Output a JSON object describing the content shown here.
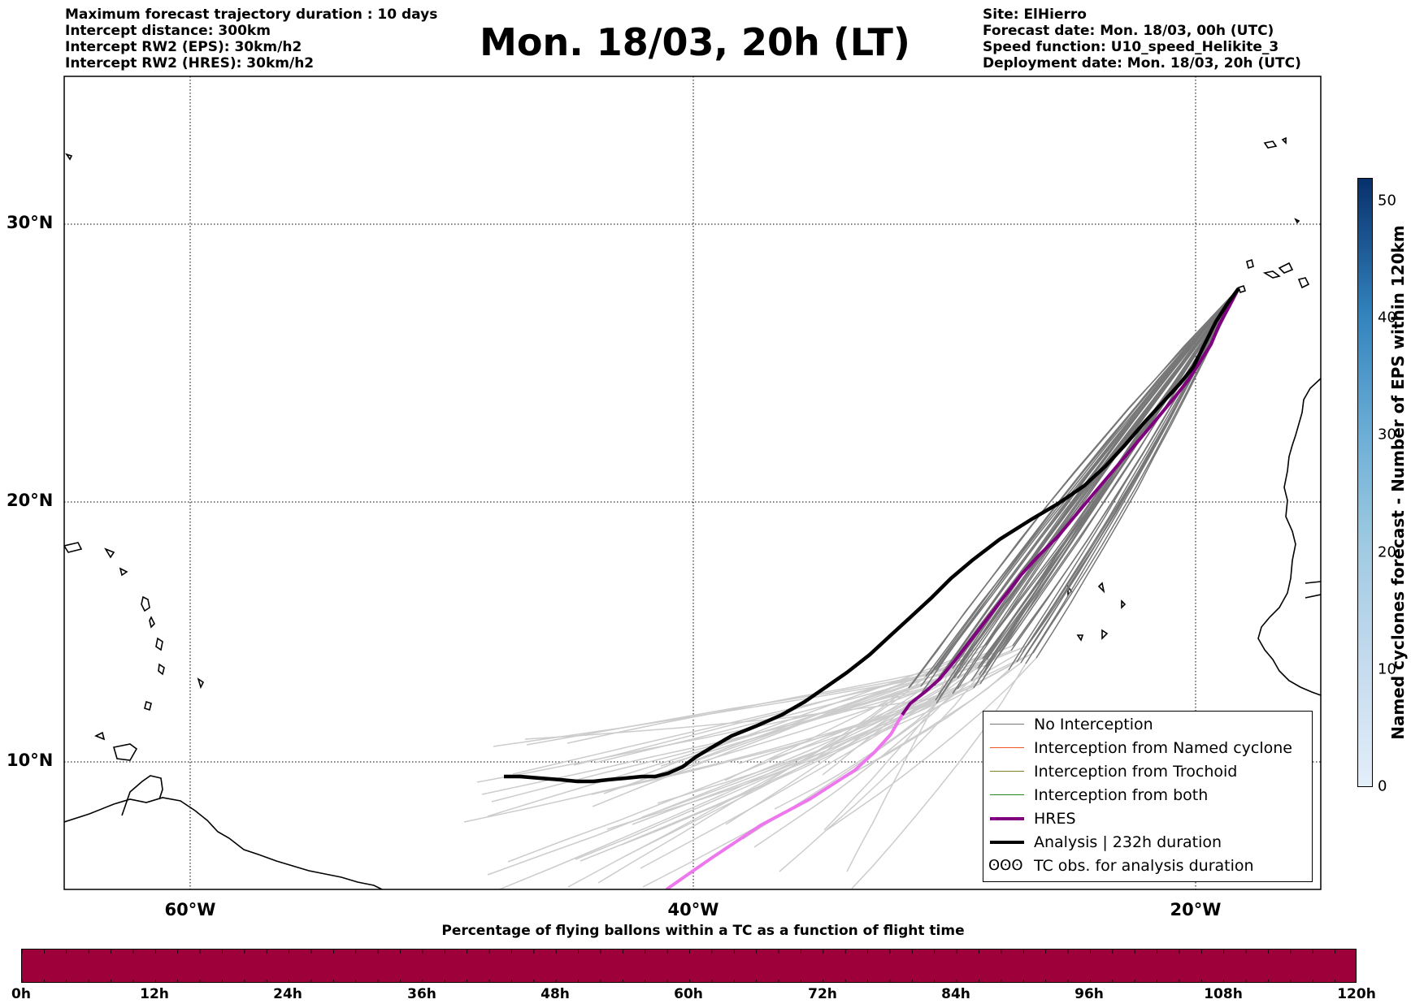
{
  "header_left": [
    "Maximum forecast trajectory duration : 10 days",
    "Intercept distance: 300km",
    "Intercept RW2 (EPS):  30km/h2",
    "Intercept RW2 (HRES): 30km/h2"
  ],
  "title": "Mon. 18/03, 20h (LT)",
  "header_right": [
    "Site: ElHierro",
    "Forecast date: Mon. 18/03, 00h (UTC)",
    "Speed function: U10_speed_Helikite_3",
    "Deployment date: Mon. 18/03, 20h (UTC)"
  ],
  "map": {
    "lon_range": [
      -65,
      -15
    ],
    "lat_range": [
      5.4,
      34.8
    ],
    "lat_labels": [
      "30°N",
      "20°N",
      "10°N"
    ],
    "lon_labels": [
      "60°W",
      "40°W",
      "20°W"
    ],
    "grid": "dotted",
    "colors": {
      "no_interception": "#777777",
      "faded_ensemble": "#cccccc",
      "hres": "#800080",
      "hres_faded": "#ee77ee",
      "analysis": "#000000",
      "named_cyclone": "#ee5522",
      "trochoid": "#808020",
      "both": "#228822"
    }
  },
  "legend": {
    "placement": "bottom-right",
    "items": [
      {
        "label": "No Interception",
        "color": "#777777"
      },
      {
        "label": "Interception from Named cyclone",
        "color": "#ee5522"
      },
      {
        "label": "Interception from Trochoid",
        "color": "#808020"
      },
      {
        "label": "Interception from both",
        "color": "#228822"
      },
      {
        "label": "HRES",
        "color": "#800080"
      },
      {
        "label": "Analysis | 232h duration",
        "color": "#000000"
      },
      {
        "label": "TC obs. for analysis duration",
        "symbol": "ʘʘʘ"
      }
    ]
  },
  "colorbar": {
    "label": "Named cyclones forecast - Number of EPS within 120km",
    "ticks": [
      "0",
      "10",
      "20",
      "30",
      "40",
      "50"
    ],
    "range": [
      0,
      52
    ]
  },
  "percentage_bar": {
    "title": "Percentage of flying ballons within a TC as a function of flight time",
    "color": "#9e003a",
    "ticks": [
      "0h",
      "12h",
      "24h",
      "36h",
      "48h",
      "60h",
      "72h",
      "84h",
      "96h",
      "108h",
      "120h"
    ]
  }
}
